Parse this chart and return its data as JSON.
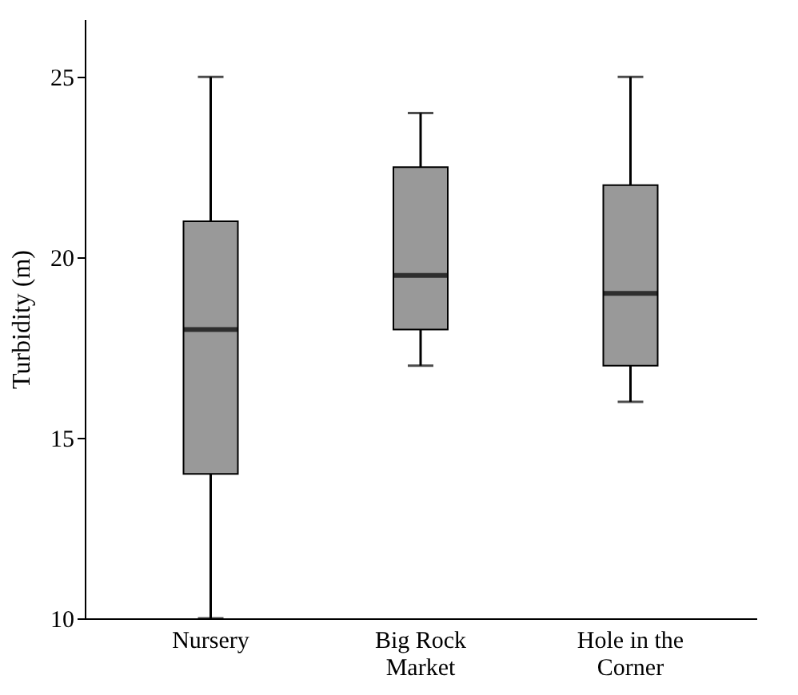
{
  "chart_data": {
    "type": "box",
    "ylabel": "Turbidity (m)",
    "categories": [
      "Nursery",
      "Big Rock Market",
      "Hole in the Corner"
    ],
    "ylim": [
      10,
      26.6
    ],
    "yticks": [
      10,
      15,
      20,
      25
    ],
    "grid": false,
    "color": "#999999",
    "boxes": [
      {
        "low": 10,
        "q1": 14,
        "median": 18,
        "q3": 21,
        "high": 25
      },
      {
        "low": 17,
        "q1": 18,
        "median": 19.5,
        "q3": 22.5,
        "high": 24
      },
      {
        "low": 16,
        "q1": 17,
        "median": 19,
        "q3": 22,
        "high": 25
      }
    ]
  }
}
